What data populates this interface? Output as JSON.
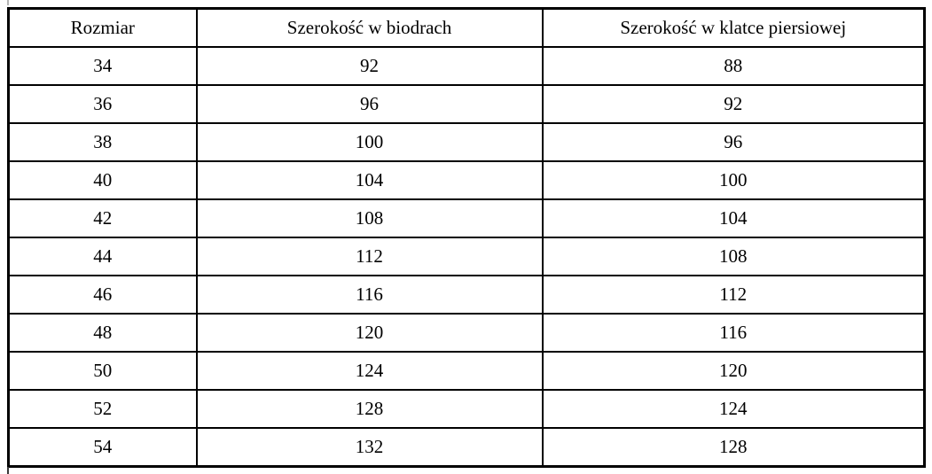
{
  "table": {
    "columns": [
      "Rozmiar",
      "Szerokość w biodrach",
      "Szerokość w klatce piersiowej"
    ],
    "rows": [
      [
        "34",
        "92",
        "88"
      ],
      [
        "36",
        "96",
        "92"
      ],
      [
        "38",
        "100",
        "96"
      ],
      [
        "40",
        "104",
        "100"
      ],
      [
        "42",
        "108",
        "104"
      ],
      [
        "44",
        "112",
        "108"
      ],
      [
        "46",
        "116",
        "112"
      ],
      [
        "48",
        "120",
        "116"
      ],
      [
        "50",
        "124",
        "120"
      ],
      [
        "52",
        "128",
        "124"
      ],
      [
        "54",
        "132",
        "128"
      ]
    ]
  },
  "colors": {
    "border": "#000000",
    "background": "#ffffff",
    "text": "#000000"
  }
}
